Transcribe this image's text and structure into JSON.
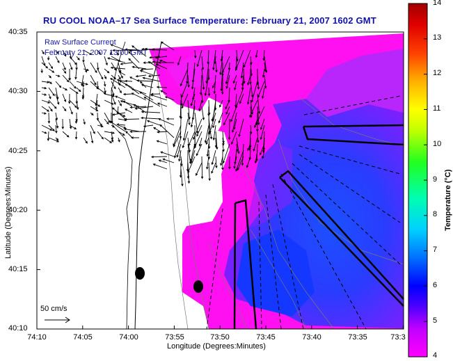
{
  "title": "RU COOL  NOAA–17  Sea Surface Temperature:  February 21, 2007 1602 GMT",
  "overlay": {
    "line1": "Raw Surface Current",
    "line2": "February 21, 2007 13:00 GMT"
  },
  "axes": {
    "xlabel": "Longitude (Degrees:Minutes)",
    "ylabel": "Latitude (Degrees:Minutes)",
    "xticks": [
      "74:10",
      "74:05",
      "74:00",
      "73:55",
      "73:50",
      "73:45",
      "73:40",
      "73:35",
      "73:3"
    ],
    "yticks": [
      "40:35",
      "40:30",
      "40:25",
      "40:20",
      "40:15",
      "40:10"
    ]
  },
  "colorbar": {
    "label": "Temperature (°C)",
    "ticks": [
      "14",
      "13",
      "12",
      "11",
      "10",
      "9",
      "8",
      "7",
      "6",
      "5",
      "4"
    ],
    "min": 4,
    "max": 14
  },
  "scale_bar": {
    "label": "50 cm/s"
  },
  "colors": {
    "warm_shelf": "#ff00ff",
    "cool_water": "#2a3cff",
    "mid_water": "#a000ff",
    "land": "#ffffff",
    "title": "#1010b0"
  }
}
